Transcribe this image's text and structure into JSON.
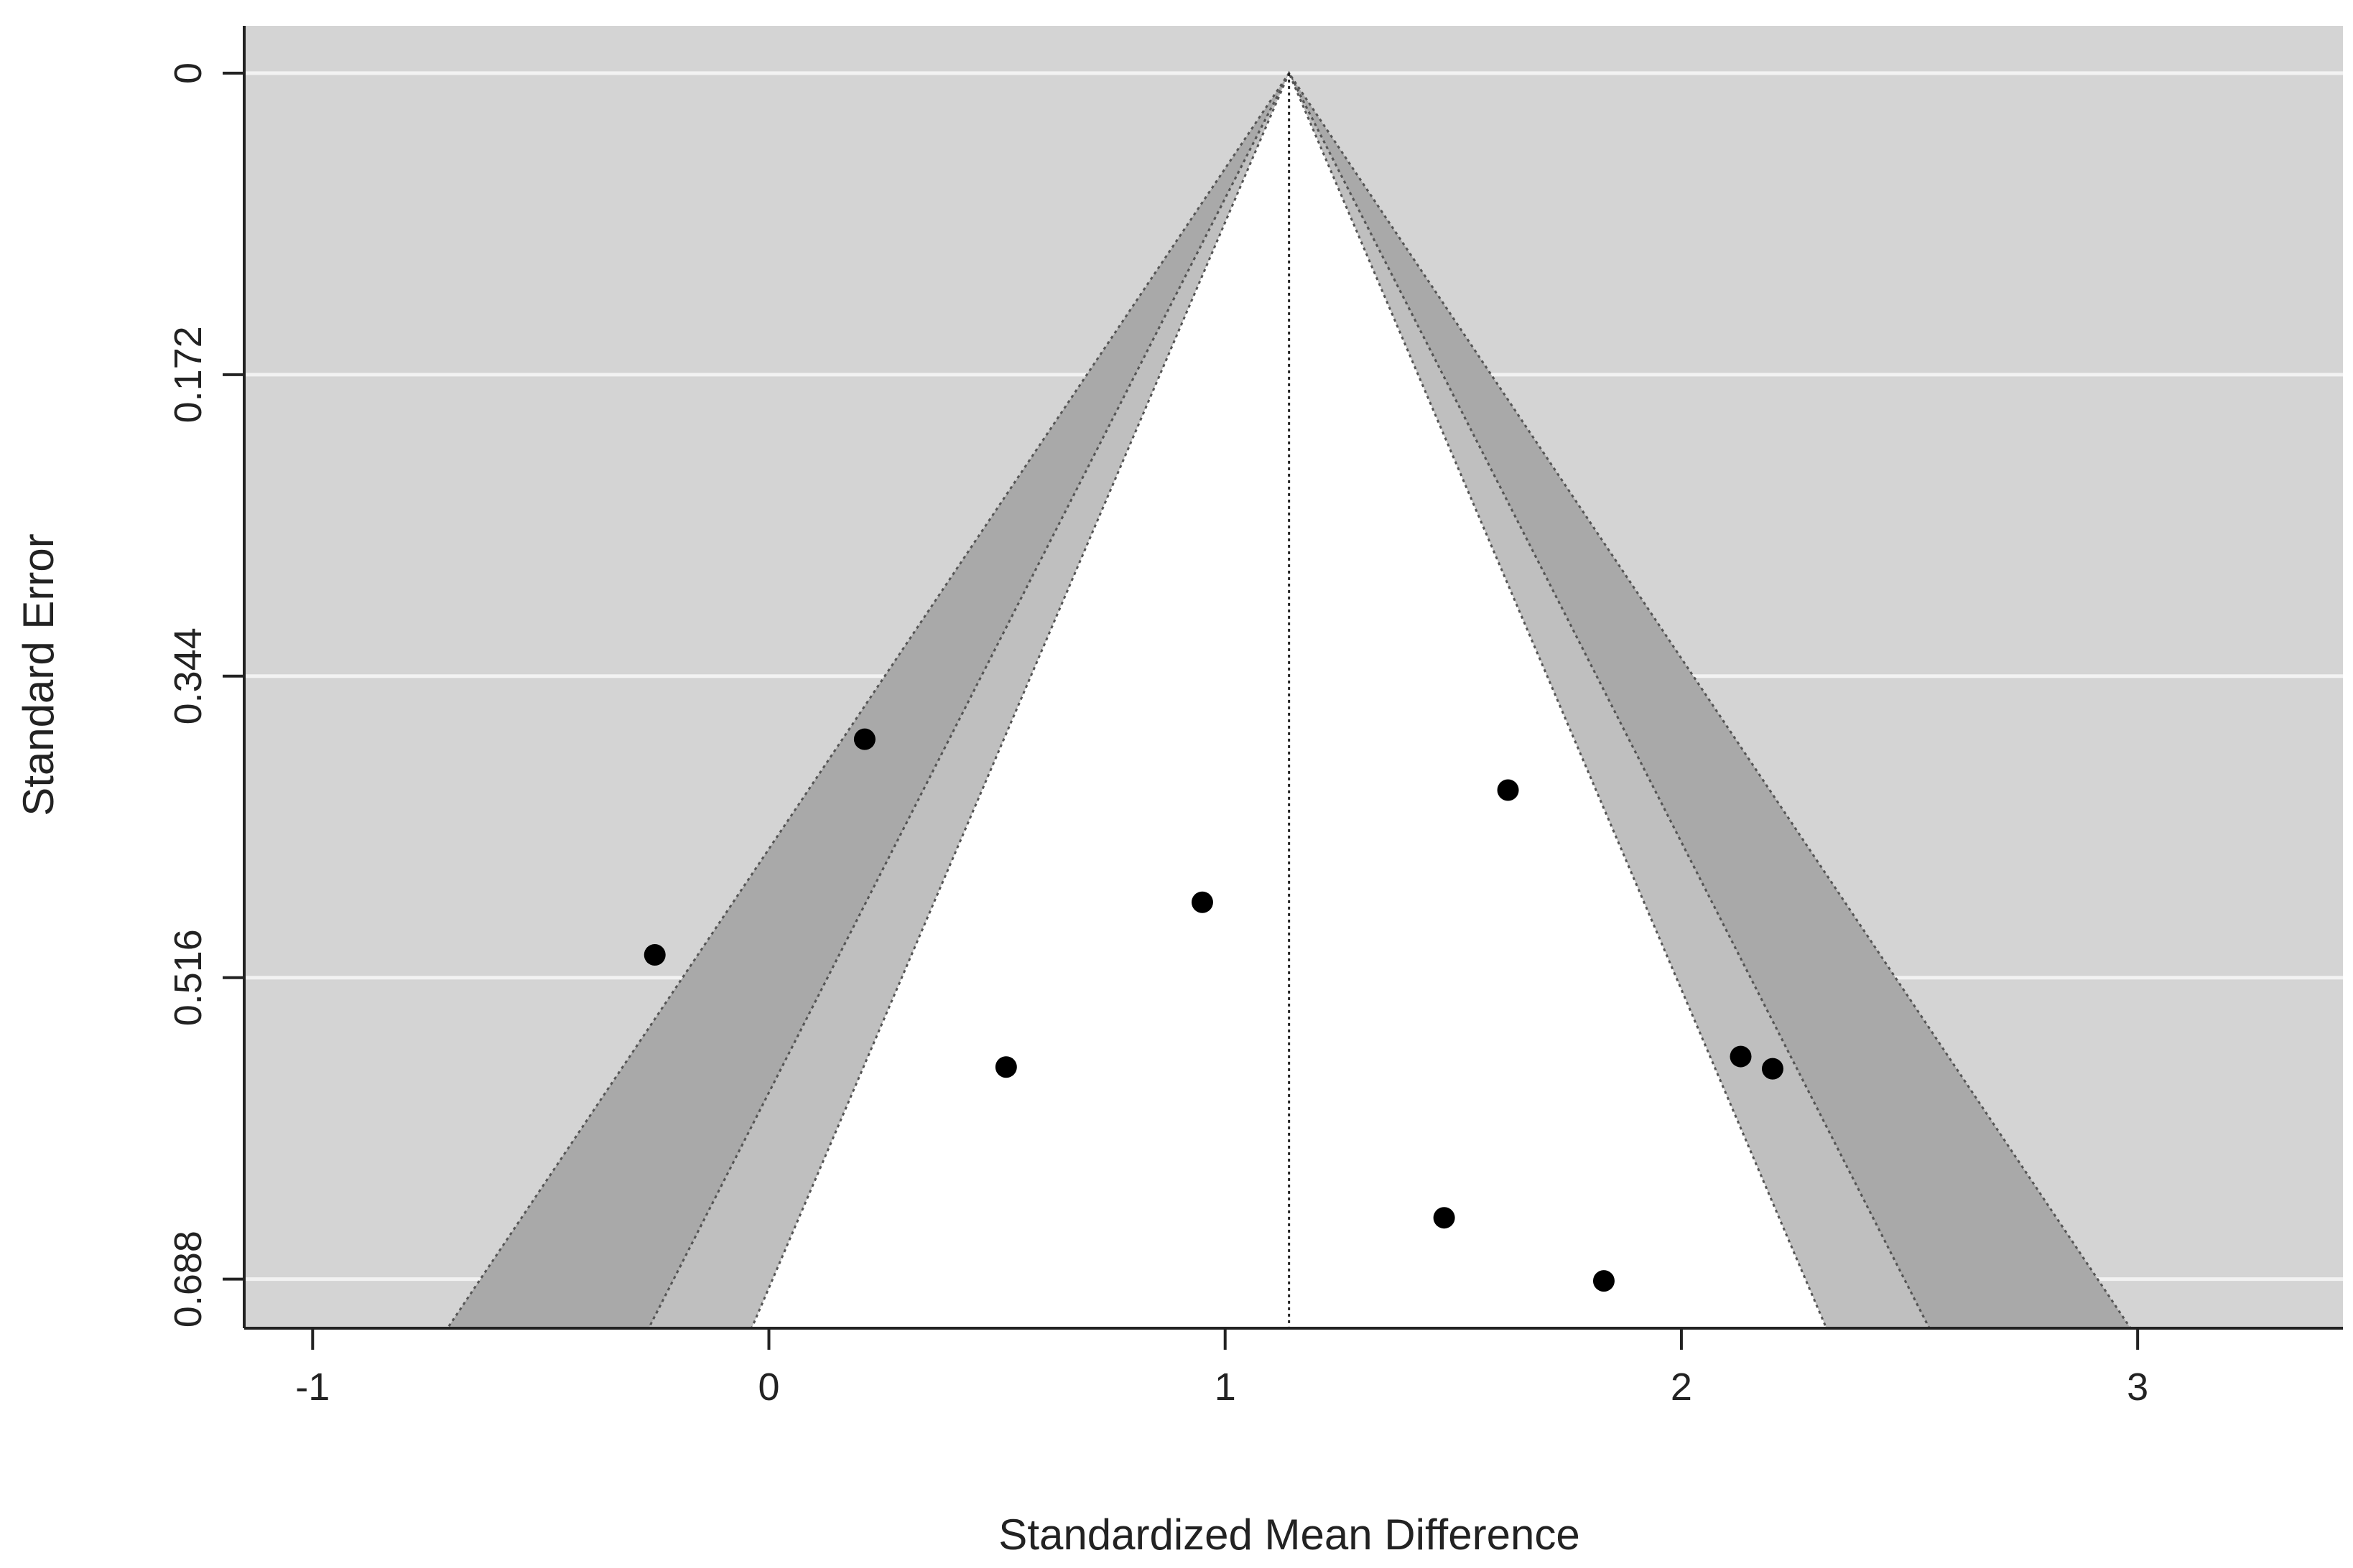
{
  "chart_data": {
    "type": "scatter",
    "subtype": "contour-enhanced funnel plot",
    "xlabel": "Standardized Mean Difference",
    "ylabel": "Standard Error",
    "xlim": [
      -1.15,
      3.45
    ],
    "ylim": [
      0.716,
      -0.027
    ],
    "y_reversed": true,
    "x_ticks": [
      -1,
      0,
      1,
      2,
      3
    ],
    "x_tick_labels": [
      "-1",
      "0",
      "1",
      "2",
      "3"
    ],
    "y_ticks": [
      0,
      0.172,
      0.344,
      0.516,
      0.688
    ],
    "y_tick_labels": [
      "0",
      "0.172",
      "0.344",
      "0.516",
      "0.688"
    ],
    "grid": "horizontal",
    "summary_estimate": 1.14,
    "contours": [
      {
        "level": "p < 0.10",
        "z": 1.645,
        "color": "#bfbfbf"
      },
      {
        "level": "p < 0.05",
        "z": 1.96,
        "color": "#a9a9a9"
      },
      {
        "level": "p < 0.01",
        "z": 2.576,
        "color": "#d4d4d4"
      }
    ],
    "inner_region_color": "#ffffff",
    "outer_region_color": "#d4d4d4",
    "points": [
      {
        "x": 0.21,
        "y": 0.38
      },
      {
        "x": -0.25,
        "y": 0.503
      },
      {
        "x": 0.95,
        "y": 0.473
      },
      {
        "x": 1.62,
        "y": 0.409
      },
      {
        "x": 0.52,
        "y": 0.567
      },
      {
        "x": 2.13,
        "y": 0.561
      },
      {
        "x": 2.2,
        "y": 0.568
      },
      {
        "x": 1.48,
        "y": 0.653
      },
      {
        "x": 1.83,
        "y": 0.689
      }
    ],
    "point_color": "#000000"
  }
}
